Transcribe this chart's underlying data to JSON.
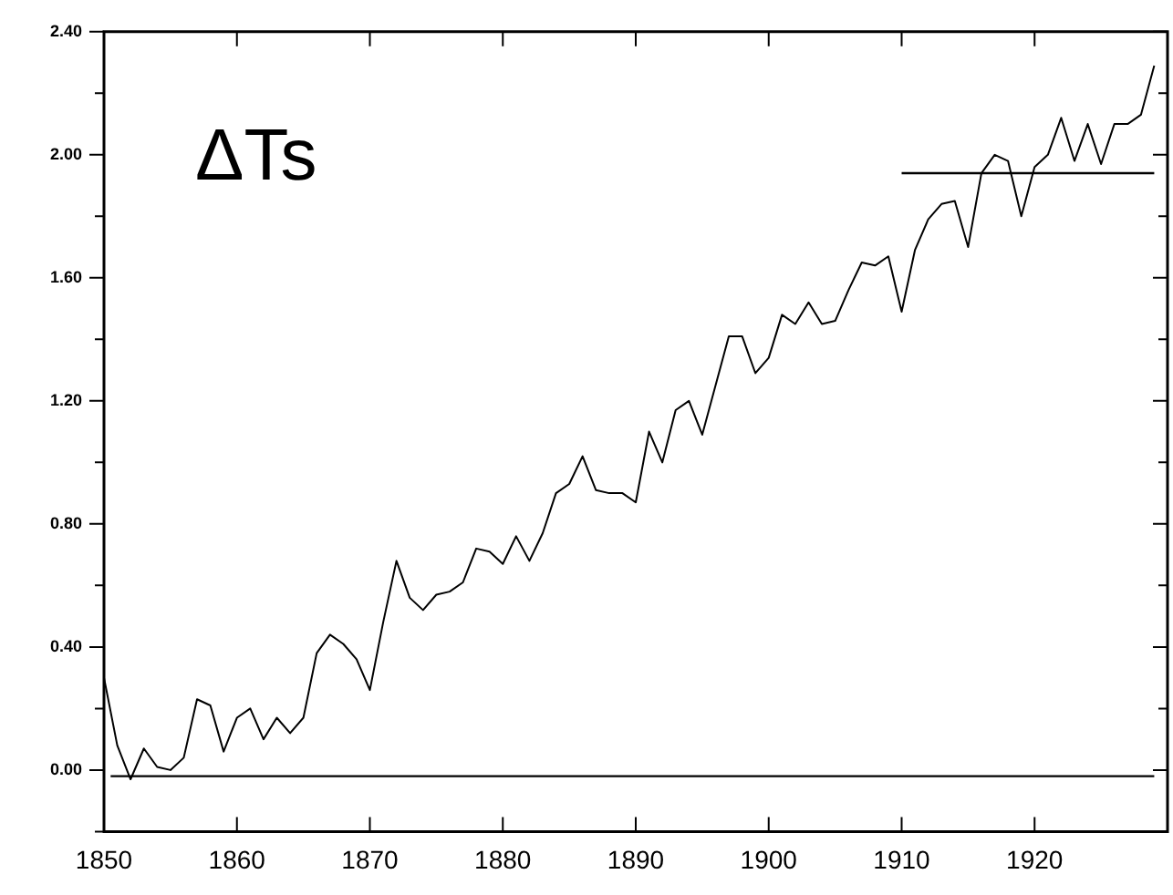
{
  "chart_data": {
    "type": "line",
    "annotations": [
      "ΔTs"
    ],
    "x": [
      1850,
      1851,
      1852,
      1853,
      1854,
      1855,
      1856,
      1857,
      1858,
      1859,
      1860,
      1861,
      1862,
      1863,
      1864,
      1865,
      1866,
      1867,
      1868,
      1869,
      1870,
      1871,
      1872,
      1873,
      1874,
      1875,
      1876,
      1877,
      1878,
      1879,
      1880,
      1881,
      1882,
      1883,
      1884,
      1885,
      1886,
      1887,
      1888,
      1889,
      1890,
      1891,
      1892,
      1893,
      1894,
      1895,
      1896,
      1897,
      1898,
      1899,
      1900,
      1901,
      1902,
      1903,
      1904,
      1905,
      1906,
      1907,
      1908,
      1909,
      1910,
      1911,
      1912,
      1913,
      1914,
      1915,
      1916,
      1917,
      1918,
      1919,
      1920,
      1921,
      1922,
      1923,
      1924,
      1925,
      1926,
      1927,
      1928,
      1929
    ],
    "series": [
      {
        "color": "#000000",
        "values": [
          0.3,
          0.08,
          -0.03,
          0.07,
          0.01,
          0.0,
          0.04,
          0.23,
          0.21,
          0.06,
          0.17,
          0.2,
          0.1,
          0.17,
          0.12,
          0.17,
          0.38,
          0.44,
          0.41,
          0.36,
          0.26,
          0.48,
          0.68,
          0.56,
          0.52,
          0.57,
          0.58,
          0.61,
          0.72,
          0.71,
          0.67,
          0.76,
          0.68,
          0.77,
          0.9,
          0.93,
          1.02,
          0.91,
          0.9,
          0.9,
          0.87,
          1.1,
          1.0,
          1.17,
          1.2,
          1.09,
          1.25,
          1.41,
          1.41,
          1.29,
          1.34,
          1.48,
          1.45,
          1.52,
          1.45,
          1.46,
          1.56,
          1.65,
          1.64,
          1.67,
          1.49,
          1.69,
          1.79,
          1.84,
          1.85,
          1.7,
          1.94,
          2.0,
          1.98,
          1.8,
          1.96,
          2.0,
          2.12,
          1.98,
          2.1,
          1.97,
          2.1,
          2.1,
          2.13,
          2.29
        ]
      },
      {
        "color": "#000000",
        "x": [
          1910,
          1929
        ],
        "values": [
          1.94,
          1.94
        ]
      },
      {
        "color": "#000000",
        "x": [
          1850.5,
          1929
        ],
        "values": [
          -0.02,
          -0.02
        ]
      }
    ],
    "xlim": [
      1850,
      1930
    ],
    "xticks": [
      1850,
      1860,
      1870,
      1880,
      1890,
      1900,
      1910,
      1920
    ],
    "ylim": [
      -0.2,
      2.4
    ],
    "yticks": [
      {
        "value": -0.2,
        "label": null
      },
      {
        "value": 0,
        "label": "0.00"
      },
      {
        "value": 0.2,
        "label": null
      },
      {
        "value": 0.4,
        "label": "0.40"
      },
      {
        "value": 0.6,
        "label": null
      },
      {
        "value": 0.8,
        "label": "0.80"
      },
      {
        "value": 1.0,
        "label": null
      },
      {
        "value": 1.2,
        "label": "1.20"
      },
      {
        "value": 1.4,
        "label": null
      },
      {
        "value": 1.6,
        "label": "1.60"
      },
      {
        "value": 1.8,
        "label": null
      },
      {
        "value": 2.0,
        "label": "2.00"
      },
      {
        "value": 2.2,
        "label": null
      },
      {
        "value": 2.4,
        "label": "2.40"
      }
    ],
    "grid": false,
    "legend": false,
    "marker": "none",
    "line_style": "solid"
  }
}
